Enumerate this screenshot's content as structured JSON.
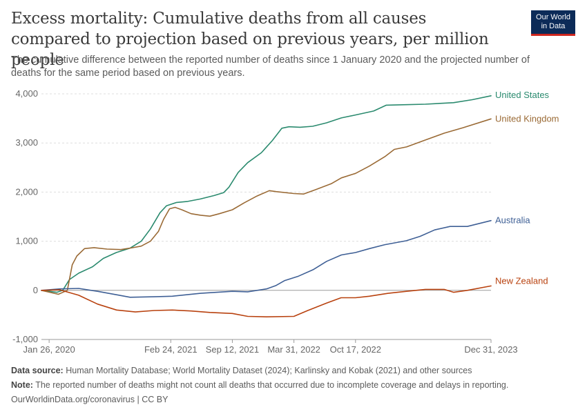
{
  "header": {
    "title": "Excess mortality: Cumulative deaths from all causes compared to projection based on previous years, per million people",
    "subtitle": "The cumulative difference between the reported number of deaths since 1 January 2020 and the projected number of deaths for the same period based on previous years.",
    "logo_line1": "Our World",
    "logo_line2": "in Data"
  },
  "footer": {
    "source_label": "Data source:",
    "source_text": "Human Mortality Database; World Mortality Dataset (2024); Karlinsky and Kobak (2021) and other sources",
    "note_label": "Note:",
    "note_text": "The reported number of deaths might not count all deaths that occurred due to incomplete coverage and delays in reporting.",
    "url_text": "OurWorldinData.org/coronavirus | CC BY"
  },
  "colors": {
    "united_states": "#2a8a6e",
    "united_kingdom": "#9a6a35",
    "australia": "#3e5f95",
    "new_zealand": "#b8410e"
  },
  "chart_data": {
    "type": "line",
    "title": "",
    "xlabel": "",
    "ylabel": "",
    "grid": "horizontal dashed",
    "legend": "inline labels at right end of lines",
    "ylim": [
      -1000,
      4000
    ],
    "y_ticks": [
      -1000,
      0,
      1000,
      2000,
      3000,
      4000
    ],
    "y_tick_labels": [
      "-1,000",
      "0",
      "1,000",
      "2,000",
      "3,000",
      "4,000"
    ],
    "xlim": [
      "2020-01-01",
      "2023-12-31"
    ],
    "x_ticks": [
      "2020-01-26",
      "2021-02-24",
      "2021-09-12",
      "2022-03-31",
      "2022-10-17",
      "2023-12-31"
    ],
    "x_tick_labels": [
      "Jan 26, 2020",
      "Feb 24, 2021",
      "Sep 12, 2021",
      "Mar 31, 2022",
      "Oct 17, 2022",
      "Dec 31, 2023"
    ],
    "series": [
      {
        "name": "United States",
        "color_key": "united_states",
        "points": [
          [
            "2020-01-01",
            0
          ],
          [
            "2020-02-20",
            -40
          ],
          [
            "2020-03-10",
            0
          ],
          [
            "2020-04-01",
            220
          ],
          [
            "2020-05-01",
            350
          ],
          [
            "2020-06-15",
            480
          ],
          [
            "2020-07-20",
            650
          ],
          [
            "2020-08-31",
            770
          ],
          [
            "2020-10-15",
            860
          ],
          [
            "2020-11-20",
            1000
          ],
          [
            "2020-12-20",
            1250
          ],
          [
            "2021-01-20",
            1580
          ],
          [
            "2021-02-10",
            1720
          ],
          [
            "2021-03-15",
            1790
          ],
          [
            "2021-04-20",
            1810
          ],
          [
            "2021-05-31",
            1860
          ],
          [
            "2021-07-15",
            1930
          ],
          [
            "2021-08-15",
            1990
          ],
          [
            "2021-09-01",
            2100
          ],
          [
            "2021-10-01",
            2400
          ],
          [
            "2021-11-01",
            2600
          ],
          [
            "2021-12-15",
            2800
          ],
          [
            "2022-01-20",
            3050
          ],
          [
            "2022-02-20",
            3300
          ],
          [
            "2022-03-15",
            3330
          ],
          [
            "2022-04-20",
            3320
          ],
          [
            "2022-05-31",
            3340
          ],
          [
            "2022-07-15",
            3410
          ],
          [
            "2022-09-01",
            3510
          ],
          [
            "2022-10-17",
            3570
          ],
          [
            "2022-12-15",
            3650
          ],
          [
            "2023-01-25",
            3770
          ],
          [
            "2023-03-31",
            3780
          ],
          [
            "2023-06-01",
            3790
          ],
          [
            "2023-08-31",
            3820
          ],
          [
            "2023-10-31",
            3880
          ],
          [
            "2023-12-31",
            3960
          ]
        ]
      },
      {
        "name": "United Kingdom",
        "color_key": "united_kingdom",
        "points": [
          [
            "2020-01-01",
            0
          ],
          [
            "2020-02-25",
            -80
          ],
          [
            "2020-03-25",
            0
          ],
          [
            "2020-04-10",
            520
          ],
          [
            "2020-04-25",
            700
          ],
          [
            "2020-05-20",
            850
          ],
          [
            "2020-06-20",
            870
          ],
          [
            "2020-08-01",
            840
          ],
          [
            "2020-09-15",
            830
          ],
          [
            "2020-10-15",
            860
          ],
          [
            "2020-11-20",
            900
          ],
          [
            "2020-12-20",
            1000
          ],
          [
            "2021-01-15",
            1200
          ],
          [
            "2021-02-01",
            1450
          ],
          [
            "2021-02-20",
            1660
          ],
          [
            "2021-03-10",
            1690
          ],
          [
            "2021-04-01",
            1640
          ],
          [
            "2021-05-01",
            1560
          ],
          [
            "2021-06-01",
            1530
          ],
          [
            "2021-07-01",
            1510
          ],
          [
            "2021-08-01",
            1560
          ],
          [
            "2021-09-12",
            1640
          ],
          [
            "2021-10-20",
            1780
          ],
          [
            "2021-12-01",
            1920
          ],
          [
            "2022-01-10",
            2030
          ],
          [
            "2022-02-01",
            2010
          ],
          [
            "2022-03-31",
            1970
          ],
          [
            "2022-05-01",
            1960
          ],
          [
            "2022-06-10",
            2050
          ],
          [
            "2022-07-30",
            2170
          ],
          [
            "2022-09-01",
            2290
          ],
          [
            "2022-10-17",
            2380
          ],
          [
            "2022-12-01",
            2530
          ],
          [
            "2023-01-20",
            2720
          ],
          [
            "2023-02-20",
            2870
          ],
          [
            "2023-04-01",
            2920
          ],
          [
            "2023-06-01",
            3060
          ],
          [
            "2023-08-01",
            3200
          ],
          [
            "2023-10-01",
            3310
          ],
          [
            "2023-12-31",
            3490
          ]
        ]
      },
      {
        "name": "Australia",
        "color_key": "australia",
        "points": [
          [
            "2020-01-01",
            0
          ],
          [
            "2020-03-01",
            30
          ],
          [
            "2020-05-01",
            40
          ],
          [
            "2020-07-01",
            -20
          ],
          [
            "2020-09-01",
            -90
          ],
          [
            "2020-10-15",
            -140
          ],
          [
            "2021-01-01",
            -130
          ],
          [
            "2021-03-01",
            -120
          ],
          [
            "2021-06-01",
            -60
          ],
          [
            "2021-09-12",
            -20
          ],
          [
            "2021-11-01",
            -30
          ],
          [
            "2022-01-01",
            30
          ],
          [
            "2022-02-01",
            100
          ],
          [
            "2022-03-01",
            200
          ],
          [
            "2022-04-15",
            290
          ],
          [
            "2022-06-01",
            420
          ],
          [
            "2022-07-15",
            590
          ],
          [
            "2022-09-01",
            720
          ],
          [
            "2022-10-17",
            770
          ],
          [
            "2022-12-01",
            850
          ],
          [
            "2023-01-20",
            930
          ],
          [
            "2023-03-31",
            1010
          ],
          [
            "2023-05-15",
            1100
          ],
          [
            "2023-07-01",
            1230
          ],
          [
            "2023-08-20",
            1300
          ],
          [
            "2023-10-15",
            1300
          ],
          [
            "2023-12-31",
            1420
          ]
        ]
      },
      {
        "name": "New Zealand",
        "color_key": "new_zealand",
        "points": [
          [
            "2020-01-01",
            0
          ],
          [
            "2020-03-01",
            10
          ],
          [
            "2020-05-01",
            -100
          ],
          [
            "2020-07-01",
            -280
          ],
          [
            "2020-09-01",
            -400
          ],
          [
            "2020-11-01",
            -440
          ],
          [
            "2021-01-01",
            -410
          ],
          [
            "2021-03-01",
            -400
          ],
          [
            "2021-05-01",
            -420
          ],
          [
            "2021-07-01",
            -450
          ],
          [
            "2021-09-12",
            -470
          ],
          [
            "2021-11-01",
            -530
          ],
          [
            "2022-01-01",
            -540
          ],
          [
            "2022-03-31",
            -530
          ],
          [
            "2022-05-15",
            -410
          ],
          [
            "2022-07-15",
            -260
          ],
          [
            "2022-08-31",
            -150
          ],
          [
            "2022-10-17",
            -150
          ],
          [
            "2022-12-01",
            -120
          ],
          [
            "2023-01-31",
            -60
          ],
          [
            "2023-04-01",
            -20
          ],
          [
            "2023-06-01",
            20
          ],
          [
            "2023-08-01",
            20
          ],
          [
            "2023-09-01",
            -40
          ],
          [
            "2023-10-15",
            0
          ],
          [
            "2023-12-31",
            90
          ]
        ]
      }
    ]
  }
}
